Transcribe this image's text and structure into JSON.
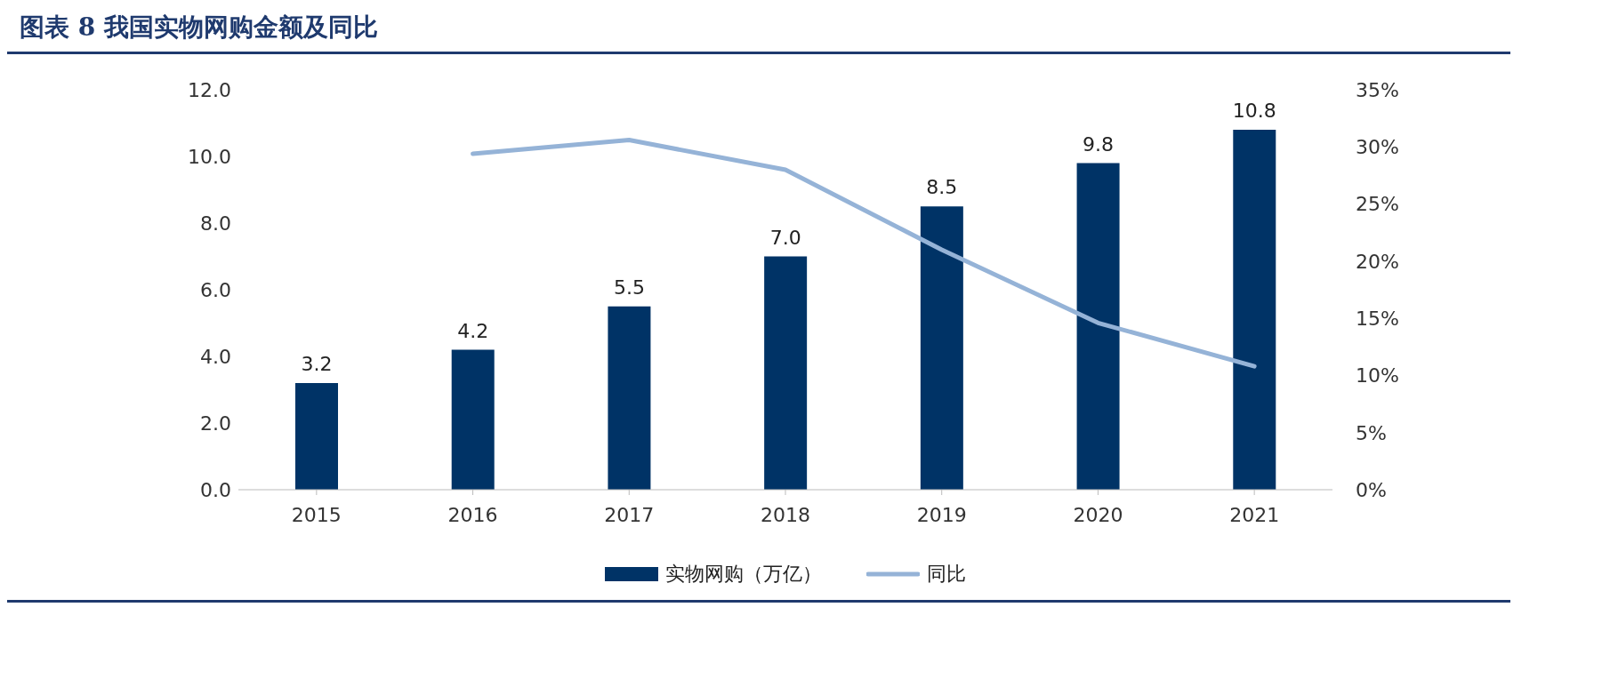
{
  "chart_data": {
    "type": "bar",
    "title": "图表 8   我国实物网购金额及同比",
    "categories": [
      "2015",
      "2016",
      "2017",
      "2018",
      "2019",
      "2020",
      "2021"
    ],
    "series": [
      {
        "name": "实物网购（万亿）",
        "color": "#003366",
        "values": [
          3.2,
          4.2,
          5.5,
          7.0,
          8.5,
          9.8,
          10.8
        ],
        "value_labels": [
          "3.2",
          "4.2",
          "5.5",
          "7.0",
          "8.5",
          "9.8",
          "10.8"
        ]
      },
      {
        "name": "同比",
        "type": "line",
        "axis": "y2",
        "color": "#95b3d7",
        "values": [
          null,
          29.4,
          30.6,
          28.0,
          21.0,
          14.6,
          10.8
        ]
      }
    ],
    "ylim": [
      0,
      12
    ],
    "yticks": [
      {
        "value": 0,
        "label": "0.0"
      },
      {
        "value": 2,
        "label": "2.0"
      },
      {
        "value": 4,
        "label": "4.0"
      },
      {
        "value": 6,
        "label": "6.0"
      },
      {
        "value": 8,
        "label": "8.0"
      },
      {
        "value": 10,
        "label": "10.0"
      },
      {
        "value": 12,
        "label": "12.0"
      }
    ],
    "y2lim": [
      0,
      35
    ],
    "y2ticks": [
      {
        "value": 0,
        "label": "0%"
      },
      {
        "value": 5,
        "label": "5%"
      },
      {
        "value": 10,
        "label": "10%"
      },
      {
        "value": 15,
        "label": "15%"
      },
      {
        "value": 20,
        "label": "20%"
      },
      {
        "value": 25,
        "label": "25%"
      },
      {
        "value": 30,
        "label": "30%"
      },
      {
        "value": 35,
        "label": "35%"
      }
    ],
    "grid": false,
    "legend": "bottom",
    "marker": "none",
    "line_style": "solid"
  }
}
